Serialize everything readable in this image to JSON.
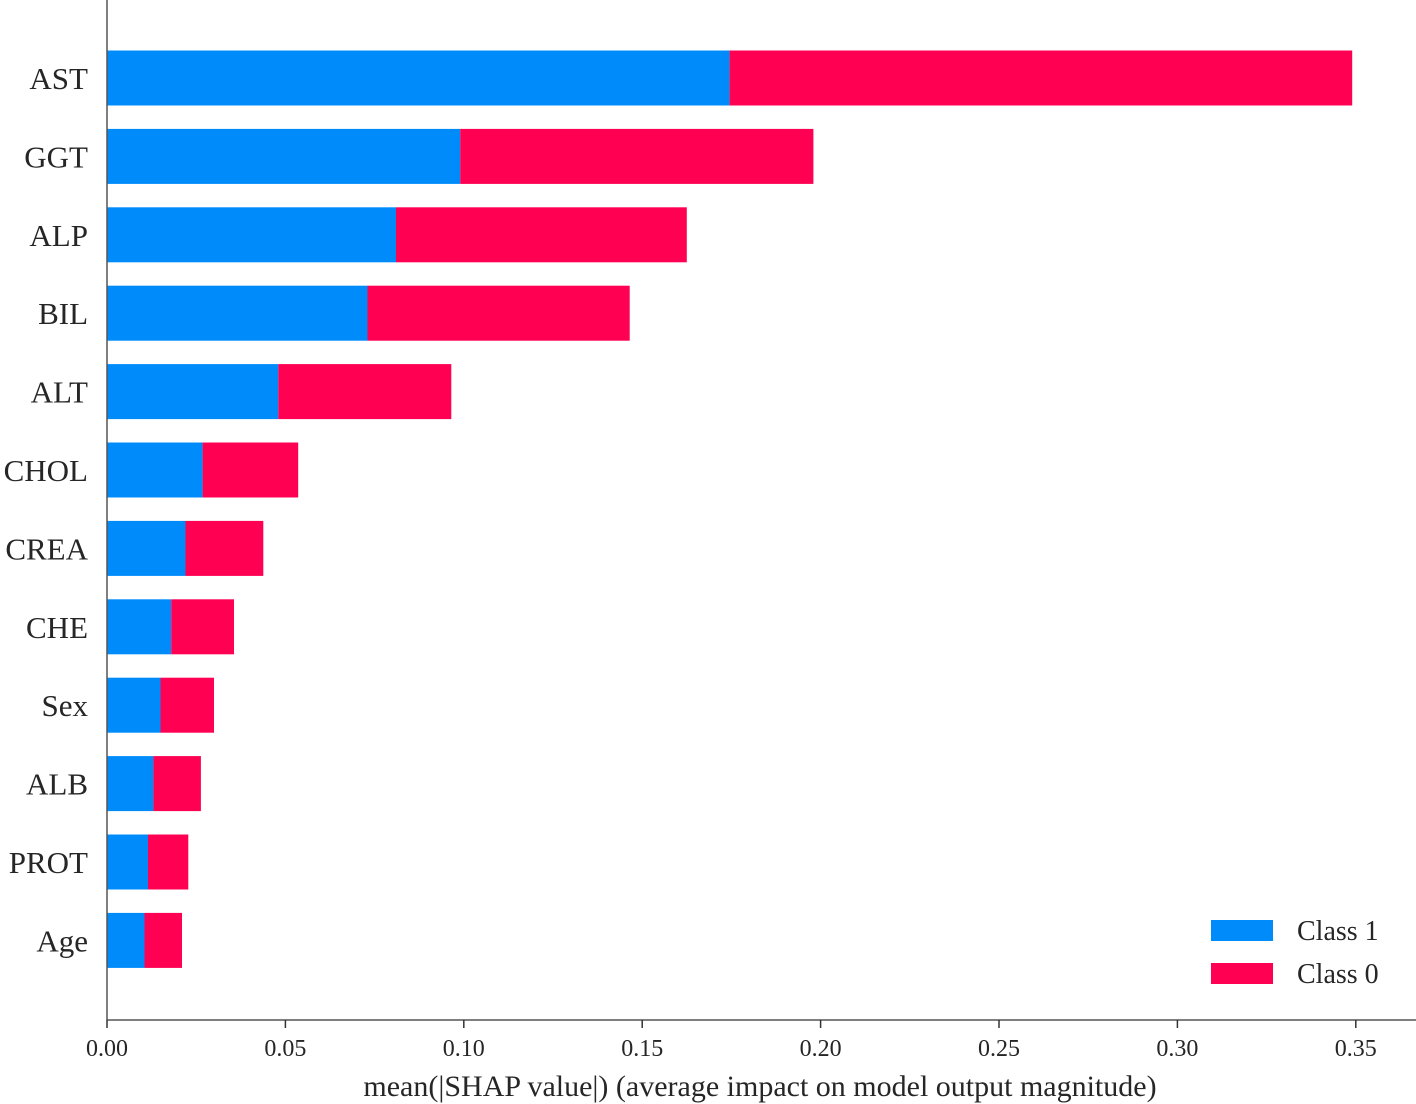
{
  "chart_data": {
    "type": "bar",
    "orientation": "horizontal",
    "stacked": true,
    "categories": [
      "AST",
      "GGT",
      "ALP",
      "BIL",
      "ALT",
      "CHOL",
      "CREA",
      "CHE",
      "Sex",
      "ALB",
      "PROT",
      "Age"
    ],
    "series": [
      {
        "name": "Class 1",
        "color": "#008bfb",
        "values": [
          0.1745,
          0.099,
          0.081,
          0.073,
          0.048,
          0.0268,
          0.022,
          0.018,
          0.015,
          0.013,
          0.0115,
          0.0105
        ]
      },
      {
        "name": "Class 0",
        "color": "#ff0052",
        "values": [
          0.1745,
          0.099,
          0.0815,
          0.0735,
          0.0485,
          0.0268,
          0.0218,
          0.0176,
          0.015,
          0.0133,
          0.0113,
          0.0105
        ]
      }
    ],
    "xlabel": "mean(|SHAP value|) (average impact on model output magnitude)",
    "ylabel": "",
    "title": "",
    "xlim": [
      0,
      0.36
    ],
    "xticks": [
      "0.00",
      "0.05",
      "0.10",
      "0.15",
      "0.20",
      "0.25",
      "0.30",
      "0.35"
    ],
    "xtick_values": [
      0,
      0.05,
      0.1,
      0.15,
      0.2,
      0.25,
      0.3,
      0.35
    ],
    "grid": false,
    "legend_position": "bottom-right"
  }
}
